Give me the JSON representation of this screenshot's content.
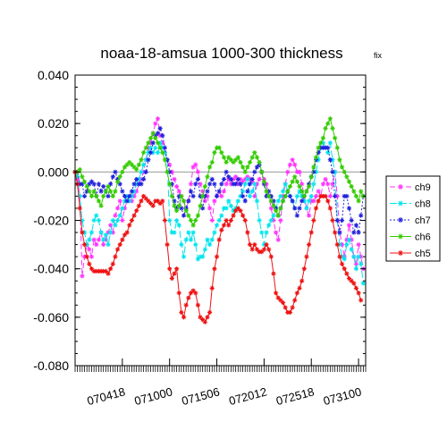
{
  "chart_data": {
    "type": "line",
    "title": "noaa-18-amsua   1000-300 thickness",
    "subtitle": "fix",
    "xlabel": "",
    "ylabel": "",
    "ylim": [
      -0.08,
      0.04
    ],
    "yticks": [
      "0.040",
      "0.020",
      "0.000",
      "-0.020",
      "-0.040",
      "-0.060",
      "-0.080"
    ],
    "ytick_values": [
      0.04,
      0.02,
      0.0,
      -0.02,
      -0.04,
      -0.06,
      -0.08
    ],
    "xticks": [
      "070418",
      "071000",
      "071506",
      "072012",
      "072518",
      "073100"
    ],
    "xtick_positions": [
      20,
      40,
      60,
      80,
      100,
      120
    ],
    "xlim": [
      0,
      123
    ],
    "reference_line": 0.0,
    "legend_position": "right",
    "series": [
      {
        "name": "ch9",
        "color": "#ff33ff",
        "dash": "6,3",
        "values": [
          0.0,
          -0.003,
          -0.01,
          -0.043,
          -0.035,
          -0.03,
          -0.032,
          -0.035,
          -0.028,
          -0.03,
          -0.028,
          -0.025,
          -0.03,
          -0.028,
          -0.025,
          -0.022,
          -0.025,
          -0.018,
          -0.015,
          -0.012,
          -0.02,
          -0.015,
          -0.012,
          -0.012,
          -0.012,
          -0.01,
          -0.008,
          -0.005,
          -0.003,
          0.0,
          0.005,
          0.01,
          0.012,
          0.016,
          0.02,
          0.022,
          0.015,
          0.012,
          0.008,
          0.005,
          0.003,
          0.0,
          -0.003,
          -0.006,
          -0.008,
          -0.01,
          -0.012,
          -0.015,
          -0.012,
          -0.005,
          0.002,
          0.003,
          0.0,
          -0.005,
          -0.008,
          -0.012,
          -0.01,
          -0.015,
          -0.02,
          -0.012,
          -0.01,
          -0.008,
          -0.01,
          -0.008,
          -0.005,
          -0.003,
          -0.005,
          -0.003,
          -0.002,
          -0.005,
          -0.003,
          -0.004,
          -0.003,
          -0.002,
          -0.003,
          -0.004,
          -0.01,
          -0.005,
          -0.003,
          0.0,
          -0.003,
          -0.005,
          -0.01,
          -0.015,
          -0.02,
          -0.025,
          -0.028,
          -0.02,
          -0.01,
          -0.005,
          0.0,
          0.003,
          0.005,
          0.003,
          0.0,
          0.0,
          -0.005,
          -0.01,
          -0.015,
          -0.018,
          -0.012,
          -0.012,
          -0.01,
          -0.008,
          -0.01,
          -0.005,
          -0.003,
          -0.005,
          -0.01,
          -0.005,
          0.0,
          -0.01,
          -0.025,
          -0.03,
          -0.035,
          -0.028,
          -0.022,
          -0.028,
          -0.035,
          -0.038,
          -0.03,
          -0.035,
          -0.04
        ]
      },
      {
        "name": "ch8",
        "color": "#00e5ee",
        "dash": "8,3",
        "values": [
          0.0,
          -0.002,
          -0.01,
          -0.02,
          -0.025,
          -0.03,
          -0.028,
          -0.025,
          -0.02,
          -0.018,
          -0.02,
          -0.025,
          -0.028,
          -0.026,
          -0.03,
          -0.025,
          -0.02,
          -0.022,
          -0.02,
          -0.018,
          -0.015,
          -0.012,
          -0.01,
          -0.012,
          -0.01,
          -0.008,
          -0.005,
          -0.003,
          0.0,
          0.003,
          0.005,
          0.008,
          0.01,
          0.008,
          0.01,
          0.008,
          0.012,
          0.01,
          0.008,
          0.005,
          -0.02,
          -0.025,
          -0.025,
          -0.02,
          -0.022,
          -0.03,
          -0.035,
          -0.028,
          -0.025,
          -0.028,
          -0.025,
          -0.03,
          -0.036,
          -0.035,
          -0.035,
          -0.032,
          -0.028,
          -0.03,
          -0.028,
          -0.025,
          -0.022,
          -0.02,
          -0.018,
          -0.015,
          -0.015,
          -0.012,
          -0.014,
          -0.016,
          -0.015,
          -0.012,
          -0.01,
          -0.008,
          -0.005,
          -0.003,
          -0.01,
          -0.008,
          -0.005,
          -0.012,
          -0.02,
          -0.025,
          -0.03,
          -0.025,
          -0.022,
          -0.02,
          -0.018,
          -0.015,
          -0.012,
          -0.01,
          -0.008,
          -0.005,
          -0.008,
          -0.01,
          -0.012,
          -0.015,
          -0.01,
          -0.008,
          -0.01,
          -0.012,
          -0.015,
          -0.012,
          -0.01,
          -0.005,
          0.0,
          0.005,
          0.01,
          0.012,
          0.01,
          0.008,
          0.012,
          0.005,
          0.0,
          -0.02,
          -0.03,
          -0.035,
          -0.036,
          -0.03,
          -0.028,
          -0.032,
          -0.035,
          -0.04,
          -0.035,
          -0.038,
          -0.046
        ]
      },
      {
        "name": "ch7",
        "color": "#2222dd",
        "dash": "2,2",
        "values": [
          0.0,
          0.0,
          -0.005,
          -0.005,
          -0.01,
          -0.008,
          -0.005,
          -0.004,
          -0.005,
          -0.01,
          -0.005,
          -0.008,
          -0.006,
          -0.008,
          -0.01,
          -0.005,
          -0.002,
          0.0,
          -0.003,
          -0.005,
          -0.008,
          -0.01,
          -0.012,
          -0.01,
          -0.008,
          -0.005,
          -0.003,
          -0.005,
          -0.005,
          -0.003,
          0.0,
          0.005,
          0.008,
          0.012,
          0.015,
          0.016,
          0.018,
          0.015,
          0.01,
          0.005,
          0.0,
          -0.005,
          -0.012,
          -0.015,
          -0.01,
          -0.015,
          -0.018,
          -0.015,
          -0.012,
          -0.008,
          -0.01,
          -0.005,
          -0.003,
          -0.01,
          -0.015,
          -0.01,
          -0.008,
          -0.005,
          -0.003,
          -0.005,
          -0.01,
          -0.008,
          -0.005,
          -0.003,
          0.0,
          -0.002,
          -0.003,
          -0.005,
          -0.005,
          -0.003,
          -0.005,
          -0.01,
          -0.012,
          -0.008,
          -0.005,
          -0.003,
          0.0,
          0.002,
          0.003,
          0.0,
          -0.005,
          -0.01,
          -0.008,
          -0.01,
          -0.012,
          -0.015,
          -0.018,
          -0.015,
          -0.012,
          -0.01,
          -0.008,
          -0.01,
          -0.012,
          -0.015,
          -0.018,
          -0.015,
          -0.012,
          -0.01,
          -0.008,
          -0.005,
          -0.002,
          0.0,
          0.005,
          0.008,
          0.01,
          0.01,
          0.01,
          0.01,
          0.005,
          0.0,
          -0.01,
          -0.02,
          -0.025,
          -0.02,
          -0.01,
          -0.01,
          -0.015,
          -0.02,
          -0.025,
          -0.022,
          -0.025,
          -0.018,
          -0.01
        ]
      },
      {
        "name": "ch6",
        "color": "#33cc00",
        "dash": "",
        "values": [
          0.0,
          0.0,
          0.001,
          -0.002,
          -0.004,
          -0.006,
          -0.008,
          -0.01,
          -0.008,
          -0.01,
          -0.012,
          -0.014,
          -0.01,
          -0.008,
          -0.006,
          -0.008,
          -0.01,
          -0.008,
          -0.004,
          -0.002,
          0.0,
          0.002,
          0.003,
          0.004,
          0.003,
          0.002,
          0.001,
          0.003,
          0.005,
          0.008,
          0.01,
          0.012,
          0.014,
          0.016,
          0.014,
          0.012,
          0.01,
          0.008,
          0.005,
          0.0,
          -0.005,
          -0.01,
          -0.014,
          -0.016,
          -0.014,
          -0.01,
          -0.012,
          -0.016,
          -0.018,
          -0.02,
          -0.022,
          -0.02,
          -0.018,
          -0.014,
          -0.01,
          -0.006,
          -0.002,
          0.002,
          0.004,
          0.008,
          0.01,
          0.01,
          0.008,
          0.006,
          0.004,
          0.006,
          0.005,
          0.004,
          0.005,
          0.006,
          0.004,
          0.002,
          0.0,
          0.002,
          0.004,
          0.006,
          0.008,
          0.006,
          0.004,
          0.0,
          -0.004,
          -0.008,
          -0.01,
          -0.012,
          -0.014,
          -0.016,
          -0.018,
          -0.015,
          -0.012,
          -0.01,
          -0.008,
          -0.006,
          -0.004,
          -0.002,
          -0.004,
          -0.006,
          -0.008,
          -0.01,
          -0.008,
          -0.006,
          -0.002,
          0.002,
          0.006,
          0.01,
          0.012,
          0.014,
          0.018,
          0.02,
          0.022,
          0.018,
          0.014,
          0.01,
          0.005,
          0.002,
          0.0,
          -0.002,
          -0.004,
          -0.006,
          -0.008,
          -0.01,
          -0.012,
          -0.008,
          -0.01
        ]
      },
      {
        "name": "ch5",
        "color": "#ee1111",
        "dash": "",
        "values": [
          0.0,
          -0.005,
          -0.015,
          -0.025,
          -0.03,
          -0.035,
          -0.038,
          -0.04,
          -0.041,
          -0.041,
          -0.041,
          -0.041,
          -0.041,
          -0.041,
          -0.042,
          -0.04,
          -0.038,
          -0.035,
          -0.032,
          -0.03,
          -0.028,
          -0.026,
          -0.025,
          -0.022,
          -0.02,
          -0.018,
          -0.016,
          -0.014,
          -0.012,
          -0.01,
          -0.011,
          -0.012,
          -0.013,
          -0.014,
          -0.012,
          -0.012,
          -0.013,
          -0.012,
          -0.02,
          -0.03,
          -0.04,
          -0.044,
          -0.042,
          -0.04,
          -0.05,
          -0.058,
          -0.06,
          -0.055,
          -0.052,
          -0.05,
          -0.049,
          -0.05,
          -0.055,
          -0.06,
          -0.061,
          -0.062,
          -0.06,
          -0.058,
          -0.048,
          -0.04,
          -0.035,
          -0.028,
          -0.024,
          -0.022,
          -0.02,
          -0.022,
          -0.02,
          -0.018,
          -0.016,
          -0.015,
          -0.016,
          -0.018,
          -0.02,
          -0.025,
          -0.03,
          -0.032,
          -0.03,
          -0.032,
          -0.033,
          -0.033,
          -0.032,
          -0.03,
          -0.032,
          -0.035,
          -0.042,
          -0.05,
          -0.052,
          -0.053,
          -0.054,
          -0.056,
          -0.058,
          -0.058,
          -0.056,
          -0.053,
          -0.05,
          -0.048,
          -0.045,
          -0.04,
          -0.035,
          -0.03,
          -0.025,
          -0.02,
          -0.015,
          -0.012,
          -0.01,
          -0.01,
          -0.01,
          -0.012,
          -0.015,
          -0.02,
          -0.025,
          -0.03,
          -0.035,
          -0.038,
          -0.04,
          -0.042,
          -0.044,
          -0.045,
          -0.046,
          -0.048,
          -0.05,
          -0.053
        ]
      }
    ]
  }
}
